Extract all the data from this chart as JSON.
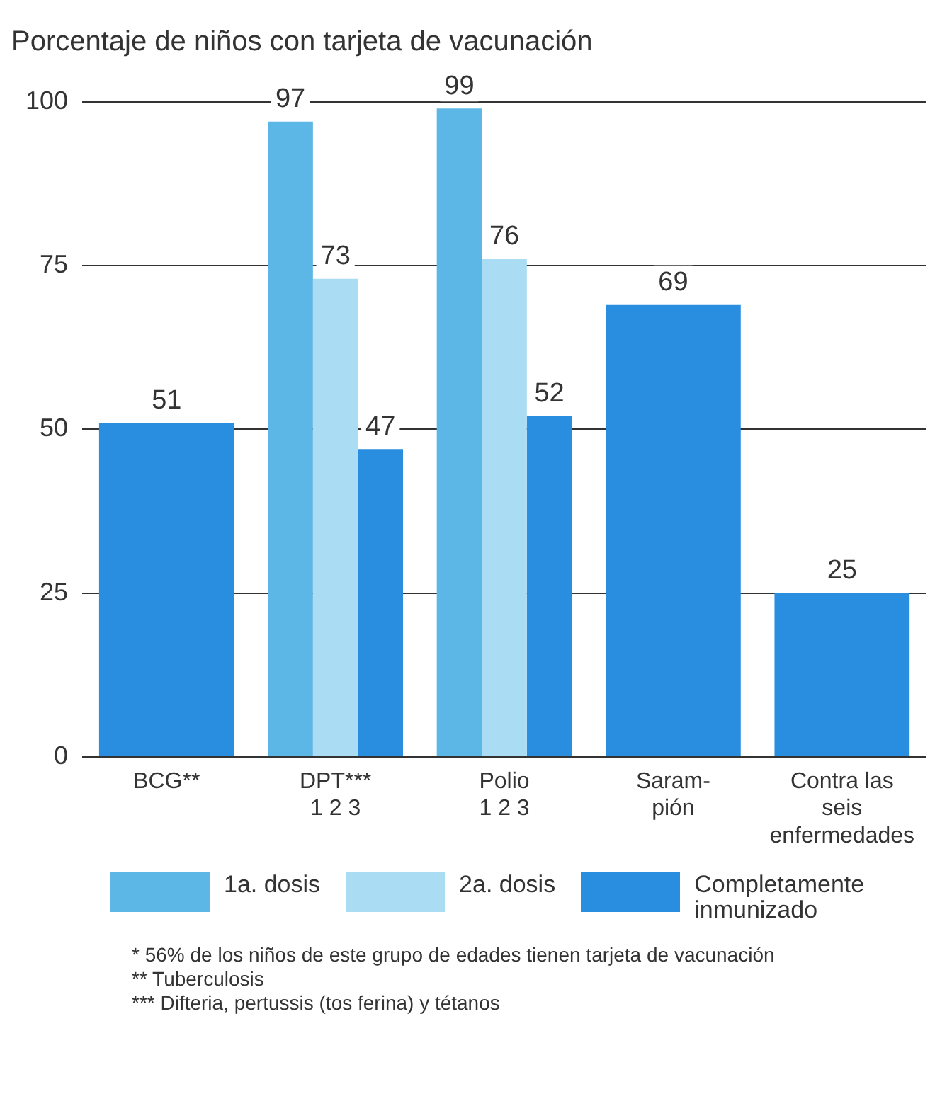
{
  "chart_data": {
    "type": "bar",
    "title": "Porcentaje de niños con tarjeta de vacunación",
    "categories": [
      "BCG**",
      "DPT***\n1 2 3",
      "Polio\n1 2 3",
      "Saram-\npión",
      "Contra las\nseis\nenfermedades"
    ],
    "series": [
      {
        "name": "1a. dosis",
        "color": "#5cb6e6",
        "values": [
          null,
          97,
          99,
          null,
          null
        ]
      },
      {
        "name": "2a. dosis",
        "color": "#aadcf4",
        "values": [
          null,
          73,
          76,
          null,
          null
        ]
      },
      {
        "name": "Completamente\ninmunizado",
        "color": "#2a8ee0",
        "values": [
          51,
          47,
          52,
          69,
          25
        ]
      }
    ],
    "ylim": [
      0,
      100
    ],
    "yticks": [
      0,
      25,
      50,
      75,
      100
    ],
    "grid": "y",
    "legend": "bottom",
    "data_labels": true,
    "annotations": [
      "* 56% de los niños de este grupo de edades tienen tarjeta de vacunación",
      "** Tuberculosis",
      "*** Difteria, pertussis (tos ferina) y tétanos"
    ]
  }
}
